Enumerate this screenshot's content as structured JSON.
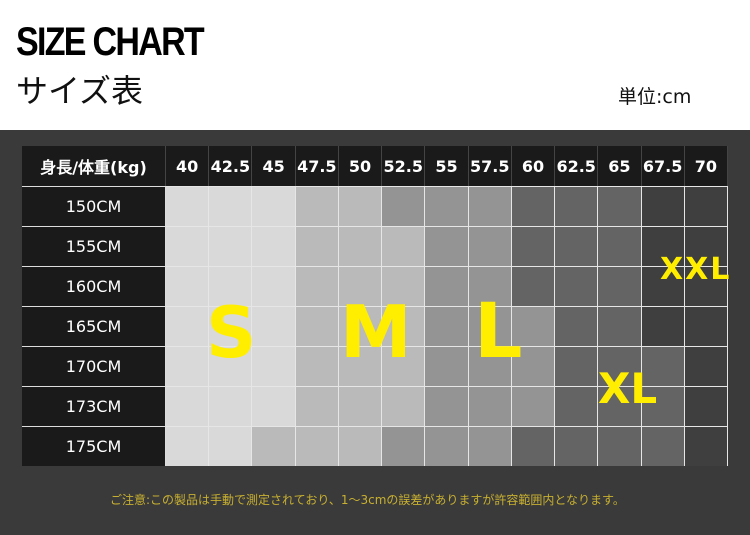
{
  "header": {
    "title": "SIZE CHART",
    "subtitle": "サイズ表",
    "unit": "単位:cm"
  },
  "table": {
    "corner": "身長/体重(kg)",
    "weights": [
      "40",
      "42.5",
      "45",
      "47.5",
      "50",
      "52.5",
      "55",
      "57.5",
      "60",
      "62.5",
      "65",
      "67.5",
      "70"
    ],
    "heights": [
      "150CM",
      "155CM",
      "160CM",
      "165CM",
      "170CM",
      "173CM",
      "175CM"
    ],
    "grid": [
      [
        "S",
        "S",
        "S",
        "M",
        "M",
        "L",
        "L",
        "L",
        "XL",
        "XL",
        "XL",
        "XXL",
        "XXL"
      ],
      [
        "S",
        "S",
        "S",
        "M",
        "M",
        "M",
        "L",
        "L",
        "XL",
        "XL",
        "XL",
        "XXL",
        "XXL"
      ],
      [
        "S",
        "S",
        "S",
        "M",
        "M",
        "M",
        "L",
        "L",
        "XL",
        "XL",
        "XL",
        "XXL",
        "XXL"
      ],
      [
        "S",
        "S",
        "S",
        "M",
        "M",
        "M",
        "L",
        "L",
        "L",
        "XL",
        "XL",
        "XXL",
        "XXL"
      ],
      [
        "S",
        "S",
        "S",
        "M",
        "M",
        "M",
        "L",
        "L",
        "L",
        "XL",
        "XL",
        "XL",
        "XXL"
      ],
      [
        "S",
        "S",
        "S",
        "M",
        "M",
        "M",
        "L",
        "L",
        "L",
        "XL",
        "XL",
        "XL",
        "XXL"
      ],
      [
        "S",
        "S",
        "M",
        "M",
        "M",
        "L",
        "L",
        "L",
        "XL",
        "XL",
        "XL",
        "XL",
        "XXL"
      ]
    ],
    "size_colors": {
      "S": "#d9d9d9",
      "M": "#bababa",
      "L": "#949494",
      "XL": "#646464",
      "XXL": "#3f3f3f"
    },
    "labels": {
      "s": "S",
      "m": "M",
      "l": "L",
      "xl": "XL",
      "xxl": "XXL"
    },
    "label_color": "#ffee00"
  },
  "note": "ご注意:この製品は手動で測定されており、1～3cmの誤差がありますが許容範囲内となります。"
}
